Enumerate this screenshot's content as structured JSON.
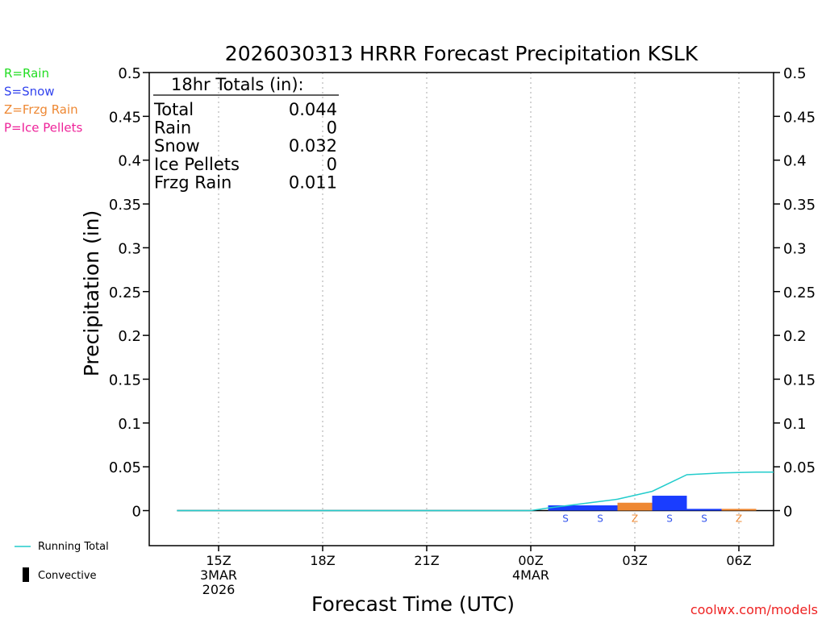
{
  "chart_data": {
    "type": "bar",
    "title": "2026030313 HRRR Forecast Precipitation KSLK",
    "ylabel": "Precipitation (in)",
    "xlabel": "Forecast Time (UTC)",
    "ylim": [
      -0.04,
      0.5
    ],
    "xlim": [
      13.0,
      31.0
    ],
    "yticks": [
      {
        "v": 0.5,
        "label": "0.5"
      },
      {
        "v": 0.45,
        "label": "0.45"
      },
      {
        "v": 0.4,
        "label": "0.4"
      },
      {
        "v": 0.35,
        "label": "0.35"
      },
      {
        "v": 0.3,
        "label": "0.3"
      },
      {
        "v": 0.25,
        "label": "0.25"
      },
      {
        "v": 0.2,
        "label": "0.2"
      },
      {
        "v": 0.15,
        "label": "0.15"
      },
      {
        "v": 0.1,
        "label": "0.1"
      },
      {
        "v": 0.05,
        "label": "0.05"
      },
      {
        "v": 0,
        "label": "0"
      }
    ],
    "xticks": [
      {
        "v": 15,
        "label": "15Z",
        "sub": [
          "3MAR",
          "2026"
        ]
      },
      {
        "v": 18,
        "label": "18Z",
        "sub": []
      },
      {
        "v": 21,
        "label": "21Z",
        "sub": []
      },
      {
        "v": 24,
        "label": "00Z",
        "sub": [
          "4MAR"
        ]
      },
      {
        "v": 27,
        "label": "03Z",
        "sub": []
      },
      {
        "v": 30,
        "label": "06Z",
        "sub": []
      }
    ],
    "bars": [
      {
        "x": 25,
        "value": 0.006,
        "type": "S"
      },
      {
        "x": 26,
        "value": 0.006,
        "type": "S"
      },
      {
        "x": 27,
        "value": 0.009,
        "type": "Z"
      },
      {
        "x": 28,
        "value": 0.017,
        "type": "S"
      },
      {
        "x": 29,
        "value": 0.002,
        "type": "S"
      },
      {
        "x": 30,
        "value": 0.002,
        "type": "Z"
      }
    ],
    "running_total": {
      "x": [
        13.8,
        15,
        18,
        21,
        24,
        24.5,
        25.5,
        26.5,
        27.5,
        28.5,
        29.5,
        30.5,
        31
      ],
      "values": [
        0,
        0,
        0,
        0,
        0,
        0.003,
        0.008,
        0.013,
        0.022,
        0.041,
        0.043,
        0.044,
        0.044
      ]
    },
    "zero_line": {
      "x_start": 13.8,
      "x_end": 31
    },
    "legend": {
      "placement": "top-left",
      "entries": [
        {
          "label": "R=Rain",
          "color": "#22dd22"
        },
        {
          "label": "S=Snow",
          "color": "#3344ee"
        },
        {
          "label": "Z=Frzg Rain",
          "color": "#ee8833"
        },
        {
          "label": "P=Ice Pellets",
          "color": "#ee2299"
        }
      ]
    },
    "bottom_legend": {
      "running_total_label": "Running Total",
      "convective_label": "Convective"
    },
    "totals": {
      "header": "18hr Totals (in):",
      "rows": [
        {
          "label": "Total",
          "value": "0.044"
        },
        {
          "label": "Rain",
          "value": "0"
        },
        {
          "label": "Snow",
          "value": "0.032"
        },
        {
          "label": "Ice Pellets",
          "value": "0"
        },
        {
          "label": "Frzg Rain",
          "value": "0.011"
        }
      ]
    },
    "colors": {
      "snow": "#1a3dff",
      "frzg": "#ee8833",
      "running_total": "#22cccc",
      "grid": "#aaaaaa",
      "snow_letter": "#3355ee",
      "frzg_letter": "#ee8833",
      "credit": "#ee2222"
    }
  },
  "credit": "coolwx.com/models"
}
